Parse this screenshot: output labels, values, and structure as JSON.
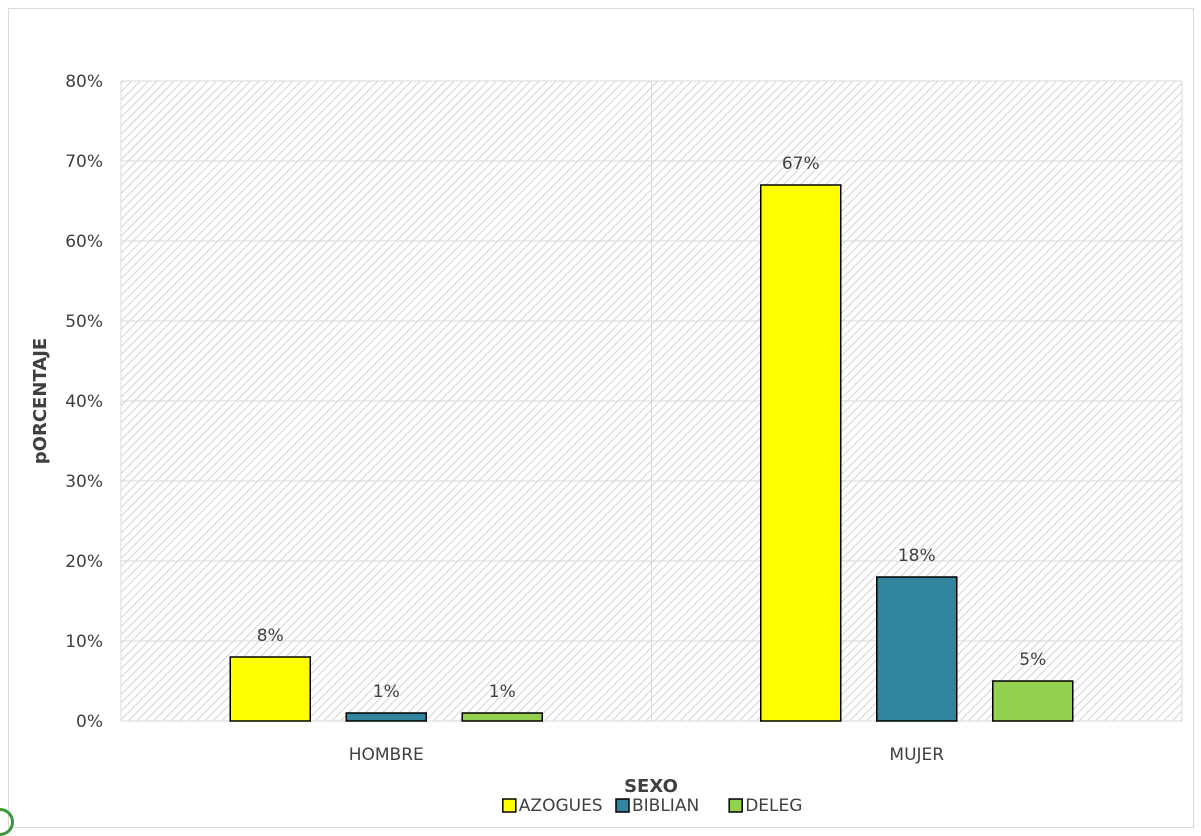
{
  "chart_data": {
    "type": "bar",
    "title": "",
    "xlabel": "SEXO",
    "ylabel": "pORCENTAJE",
    "categories": [
      "HOMBRE",
      "MUJER"
    ],
    "series": [
      {
        "name": "AZOGUES",
        "values": [
          8,
          67
        ],
        "labels": [
          "8%",
          "67%"
        ],
        "color": "#ffff00"
      },
      {
        "name": "BIBLIAN",
        "values": [
          1,
          18
        ],
        "labels": [
          "1%",
          "18%"
        ],
        "color": "#31859c"
      },
      {
        "name": "DELEG",
        "values": [
          1,
          5
        ],
        "labels": [
          "1%",
          "5%"
        ],
        "color": "#92d050"
      }
    ],
    "ylim": [
      0,
      80
    ],
    "yticks": [
      "0%",
      "10%",
      "20%",
      "30%",
      "40%",
      "50%",
      "60%",
      "70%",
      "80%"
    ],
    "grid": true,
    "legend": "bottom",
    "background_pattern": "diagonal-hatch"
  }
}
